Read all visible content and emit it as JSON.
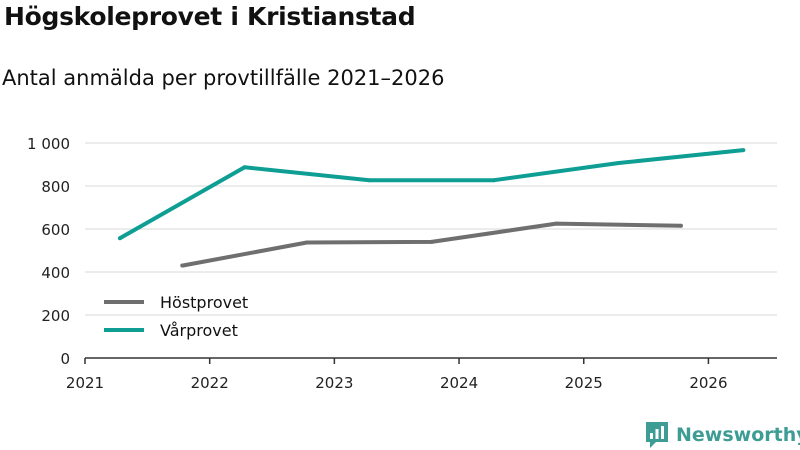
{
  "title": "Högskoleprovet i Kristianstad",
  "subtitle": "Antal anmälda per provtillfälle 2021–2026",
  "brand": "Newsworthy",
  "colors": {
    "host": "#6f6f6f",
    "var": "#0e9e94",
    "brand": "#3d9c94",
    "grid": "#d9d9d9",
    "axis": "#333333"
  },
  "chart_data": {
    "type": "line",
    "title": "Högskoleprovet i Kristianstad",
    "subtitle": "Antal anmälda per provtillfälle 2021–2026",
    "xlabel": "",
    "ylabel": "",
    "xlim": [
      2021,
      2026.55
    ],
    "ylim": [
      0,
      1000
    ],
    "x_ticks": [
      {
        "value": 2021,
        "label": "2021"
      },
      {
        "value": 2022,
        "label": "2022"
      },
      {
        "value": 2023,
        "label": "2023"
      },
      {
        "value": 2024,
        "label": "2024"
      },
      {
        "value": 2025,
        "label": "2025"
      },
      {
        "value": 2026,
        "label": "2026"
      }
    ],
    "y_ticks": [
      {
        "value": 0,
        "label": "0"
      },
      {
        "value": 200,
        "label": "200"
      },
      {
        "value": 400,
        "label": "400"
      },
      {
        "value": 600,
        "label": "600"
      },
      {
        "value": 800,
        "label": "800"
      },
      {
        "value": 1000,
        "label": "1 000"
      }
    ],
    "legend_position": "bottom-left",
    "series": [
      {
        "name": "Höstprovet",
        "color": "#6f6f6f",
        "points": [
          {
            "x": 2021.78,
            "y": 430
          },
          {
            "x": 2022.78,
            "y": 537
          },
          {
            "x": 2023.78,
            "y": 540
          },
          {
            "x": 2024.78,
            "y": 625
          },
          {
            "x": 2025.78,
            "y": 615
          }
        ]
      },
      {
        "name": "Vårprovet",
        "color": "#0e9e94",
        "points": [
          {
            "x": 2021.28,
            "y": 557
          },
          {
            "x": 2022.28,
            "y": 887
          },
          {
            "x": 2023.28,
            "y": 827
          },
          {
            "x": 2024.28,
            "y": 827
          },
          {
            "x": 2025.28,
            "y": 907
          },
          {
            "x": 2026.28,
            "y": 967
          }
        ]
      }
    ]
  }
}
